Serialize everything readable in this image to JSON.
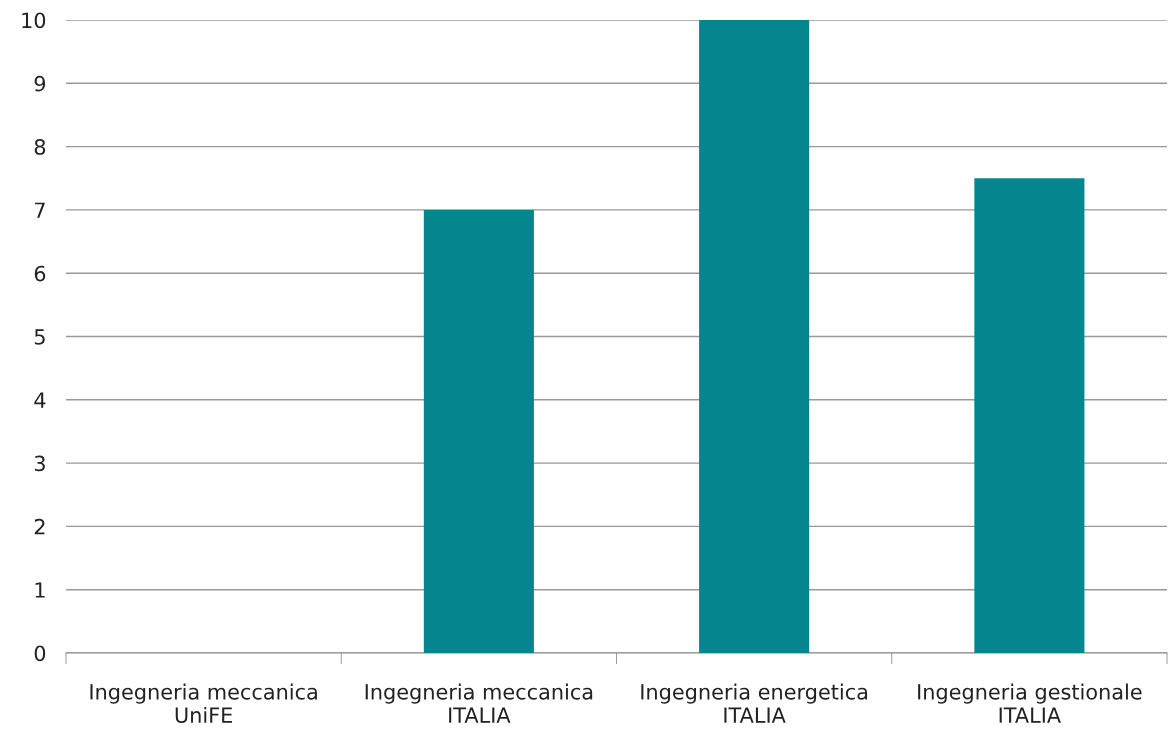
{
  "chart_data": {
    "type": "bar",
    "categories": [
      "Ingegneria meccanica\nUniFE",
      "Ingegneria meccanica\nITALIA",
      "Ingegneria energetica\nITALIA",
      "Ingegneria gestionale\nITALIA"
    ],
    "values": [
      0,
      7,
      10,
      7.5
    ],
    "color": "#05868e",
    "ylim": [
      0,
      10
    ],
    "yticks": [
      0,
      1,
      2,
      3,
      4,
      5,
      6,
      7,
      8,
      9,
      10
    ],
    "grid": "y"
  }
}
